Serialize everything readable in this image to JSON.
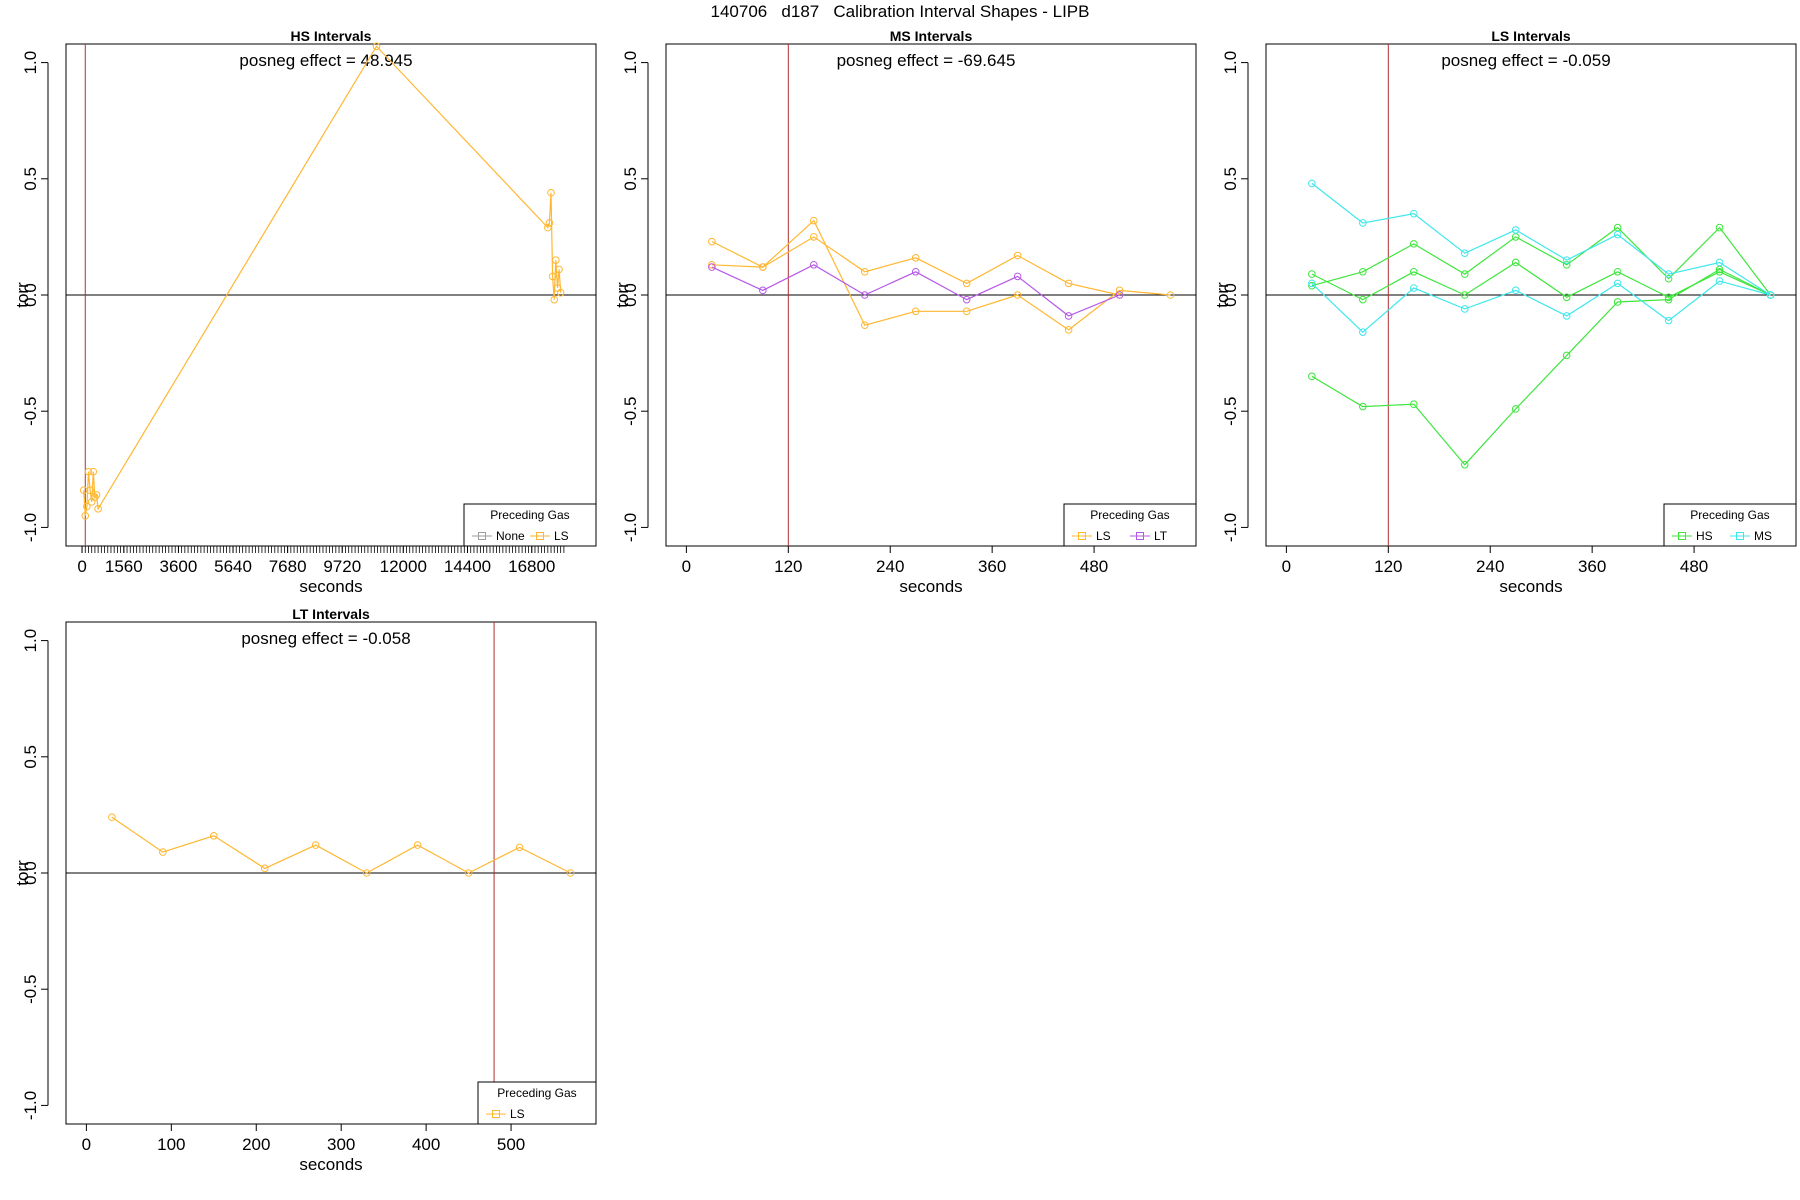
{
  "figure": {
    "title": "140706   d187   Calibration Interval Shapes - LIPB"
  },
  "colors": {
    "None": "#9e9e9e",
    "LS": "#ffb732",
    "LT": "#b659e6",
    "HS": "#3de63d",
    "MS": "#3fe7ec",
    "vline": "#b03030",
    "axis": "#000000"
  },
  "chart_data": [
    {
      "type": "line",
      "title": "HS Intervals",
      "xlabel": "seconds",
      "ylabel": "torr",
      "xlim": [
        -600,
        19200
      ],
      "ylim": [
        -1.08,
        1.08
      ],
      "xticks": [
        0,
        1560,
        3600,
        5640,
        7680,
        9720,
        12000,
        14400,
        16800
      ],
      "xtick_labels": [
        "0",
        "1560",
        "3600",
        "5640",
        "7680",
        "9720",
        "12000",
        "14400",
        "16800"
      ],
      "minor_xticks": {
        "start": 0,
        "end": 18000,
        "step": 120
      },
      "yticks": [
        -1.0,
        -0.5,
        0.0,
        0.5,
        1.0
      ],
      "ytick_labels": [
        "-1.0",
        "-0.5",
        "0.0",
        "0.5",
        "1.0"
      ],
      "vline": 120,
      "hline": 0,
      "annotation": "posneg effect = 48.945",
      "legend": {
        "title": "Preceding Gas",
        "entries": [
          "None",
          "LS"
        ],
        "placement": "bottom-right"
      },
      "series": [
        {
          "name": "LS",
          "x": [
            60,
            120,
            180,
            240,
            300,
            360,
            420,
            480,
            540,
            600,
            11000,
            17400,
            17460,
            17520,
            17580,
            17640,
            17700,
            17760,
            17820,
            17880
          ],
          "y": [
            -0.84,
            -0.95,
            -0.91,
            -0.76,
            -0.84,
            -0.89,
            -0.76,
            -0.87,
            -0.86,
            -0.92,
            1.07,
            0.29,
            0.31,
            0.44,
            0.08,
            -0.02,
            0.15,
            0.03,
            0.11,
            0.01
          ]
        }
      ]
    },
    {
      "type": "line",
      "title": "MS Intervals",
      "xlabel": "seconds",
      "ylabel": "torr",
      "xlim": [
        -24,
        600
      ],
      "ylim": [
        -1.08,
        1.08
      ],
      "xticks": [
        0,
        120,
        240,
        360,
        480
      ],
      "xtick_labels": [
        "0",
        "120",
        "240",
        "360",
        "480"
      ],
      "yticks": [
        -1.0,
        -0.5,
        0.0,
        0.5,
        1.0
      ],
      "ytick_labels": [
        "-1.0",
        "-0.5",
        "0.0",
        "0.5",
        "1.0"
      ],
      "vline": 120,
      "hline": 0,
      "annotation": "posneg effect = -69.645",
      "legend": {
        "title": "Preceding Gas",
        "entries": [
          "LS",
          "LT"
        ],
        "placement": "bottom-right"
      },
      "series": [
        {
          "name": "LS",
          "x": [
            30,
            90,
            150,
            210,
            270,
            330,
            390,
            450,
            510,
            570
          ],
          "y": [
            0.23,
            0.12,
            0.32,
            -0.13,
            -0.07,
            -0.07,
            0.0,
            -0.15,
            0.02,
            0.0
          ]
        },
        {
          "name": "LS",
          "x": [
            30,
            90,
            150,
            210,
            270,
            330,
            390,
            450,
            510
          ],
          "y": [
            0.13,
            0.12,
            0.25,
            0.1,
            0.16,
            0.05,
            0.17,
            0.05,
            0.0
          ]
        },
        {
          "name": "LT",
          "x": [
            30,
            90,
            150,
            210,
            270,
            330,
            390,
            450,
            510
          ],
          "y": [
            0.12,
            0.02,
            0.13,
            0.0,
            0.1,
            -0.02,
            0.08,
            -0.09,
            0.0
          ]
        }
      ]
    },
    {
      "type": "line",
      "title": "LS Intervals",
      "xlabel": "seconds",
      "ylabel": "torr",
      "xlim": [
        -24,
        600
      ],
      "ylim": [
        -1.08,
        1.08
      ],
      "xticks": [
        0,
        120,
        240,
        360,
        480
      ],
      "xtick_labels": [
        "0",
        "120",
        "240",
        "360",
        "480"
      ],
      "yticks": [
        -1.0,
        -0.5,
        0.0,
        0.5,
        1.0
      ],
      "ytick_labels": [
        "-1.0",
        "-0.5",
        "0.0",
        "0.5",
        "1.0"
      ],
      "vline": 120,
      "hline": 0,
      "annotation": "posneg effect = -0.059",
      "legend": {
        "title": "Preceding Gas",
        "entries": [
          "HS",
          "MS"
        ],
        "placement": "bottom-right"
      },
      "series": [
        {
          "name": "HS",
          "x": [
            30,
            90,
            150,
            210,
            270,
            330,
            390,
            450,
            510,
            570
          ],
          "y": [
            0.04,
            0.1,
            0.22,
            0.09,
            0.25,
            0.13,
            0.29,
            0.07,
            0.29,
            0.0
          ]
        },
        {
          "name": "HS",
          "x": [
            30,
            90,
            150,
            210,
            270,
            330,
            390,
            450,
            510,
            570
          ],
          "y": [
            0.09,
            -0.02,
            0.1,
            0.0,
            0.14,
            -0.01,
            0.1,
            -0.01,
            0.1,
            0.0
          ]
        },
        {
          "name": "HS",
          "x": [
            30,
            90,
            150,
            210,
            270,
            330,
            390,
            450,
            510,
            570
          ],
          "y": [
            -0.35,
            -0.48,
            -0.47,
            -0.73,
            -0.49,
            -0.26,
            -0.03,
            -0.02,
            0.11,
            0.0
          ]
        },
        {
          "name": "MS",
          "x": [
            30,
            90,
            150,
            210,
            270,
            330,
            390,
            450,
            510,
            570
          ],
          "y": [
            0.48,
            0.31,
            0.35,
            0.18,
            0.28,
            0.15,
            0.26,
            0.09,
            0.14,
            0.0
          ]
        },
        {
          "name": "MS",
          "x": [
            30,
            90,
            150,
            210,
            270,
            330,
            390,
            450,
            510,
            570
          ],
          "y": [
            0.05,
            -0.16,
            0.03,
            -0.06,
            0.02,
            -0.09,
            0.05,
            -0.11,
            0.06,
            0.0
          ]
        }
      ]
    },
    {
      "type": "line",
      "title": "LT Intervals",
      "xlabel": "seconds",
      "ylabel": "torr",
      "xlim": [
        -24,
        600
      ],
      "ylim": [
        -1.08,
        1.08
      ],
      "xticks": [
        0,
        100,
        200,
        300,
        400,
        500
      ],
      "xtick_labels": [
        "0",
        "100",
        "200",
        "300",
        "400",
        "500"
      ],
      "yticks": [
        -1.0,
        -0.5,
        0.0,
        0.5,
        1.0
      ],
      "ytick_labels": [
        "-1.0",
        "-0.5",
        "0.0",
        "0.5",
        "1.0"
      ],
      "vline": 480,
      "hline": 0,
      "annotation": "posneg effect = -0.058",
      "legend": {
        "title": "Preceding Gas",
        "entries": [
          "LS"
        ],
        "placement": "bottom-right"
      },
      "series": [
        {
          "name": "LS",
          "x": [
            30,
            90,
            150,
            210,
            270,
            330,
            390,
            450,
            510,
            570
          ],
          "y": [
            0.24,
            0.09,
            0.16,
            0.02,
            0.12,
            0.0,
            0.12,
            0.0,
            0.11,
            0.0
          ]
        }
      ]
    }
  ]
}
